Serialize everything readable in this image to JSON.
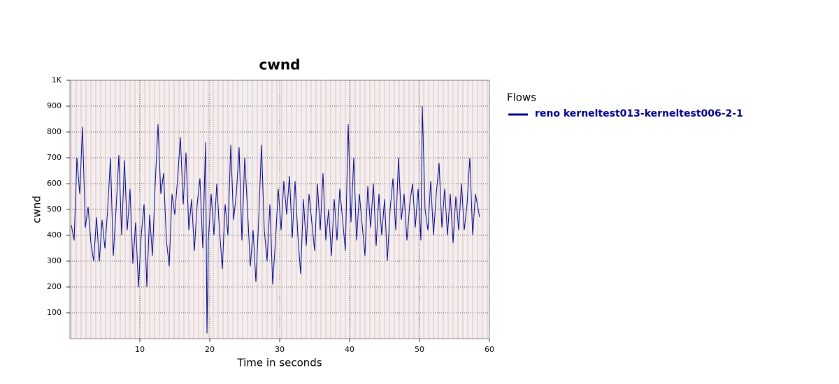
{
  "chart_data": {
    "type": "line",
    "title": "cwnd",
    "x_label": "Time in seconds",
    "y_label": "cwnd",
    "legend_title": "Flows",
    "grid": true,
    "xlim": [
      0,
      60
    ],
    "xticks": [
      10,
      20,
      30,
      40,
      50,
      60
    ],
    "ylim": [
      0,
      1000
    ],
    "yticks": [
      100,
      200,
      300,
      400,
      500,
      600,
      700,
      800,
      900,
      {
        "value": 1000,
        "label": "1K"
      }
    ],
    "x": [
      0.2,
      0.6,
      1.0,
      1.4,
      1.8,
      2.2,
      2.6,
      3.0,
      3.4,
      3.8,
      4.2,
      4.6,
      5.0,
      5.4,
      5.8,
      6.2,
      6.6,
      7.0,
      7.4,
      7.8,
      8.2,
      8.6,
      9.0,
      9.4,
      9.8,
      10.2,
      10.6,
      11.0,
      11.4,
      11.8,
      12.2,
      12.6,
      13.0,
      13.4,
      13.8,
      14.2,
      14.6,
      15.0,
      15.4,
      15.8,
      16.2,
      16.6,
      17.0,
      17.4,
      17.8,
      18.2,
      18.6,
      19.0,
      19.4,
      19.6,
      19.8,
      20.2,
      20.6,
      21.0,
      21.4,
      21.8,
      22.2,
      22.6,
      23.0,
      23.4,
      23.8,
      24.2,
      24.6,
      25.0,
      25.4,
      25.8,
      26.2,
      26.6,
      27.0,
      27.4,
      27.8,
      28.2,
      28.6,
      29.0,
      29.4,
      29.8,
      30.2,
      30.6,
      31.0,
      31.4,
      31.8,
      32.2,
      32.6,
      33.0,
      33.4,
      33.8,
      34.2,
      34.6,
      35.0,
      35.4,
      35.8,
      36.2,
      36.6,
      37.0,
      37.4,
      37.8,
      38.2,
      38.6,
      39.0,
      39.4,
      39.8,
      40.2,
      40.6,
      41.0,
      41.4,
      41.8,
      42.2,
      42.6,
      43.0,
      43.4,
      43.8,
      44.2,
      44.6,
      45.0,
      45.4,
      45.8,
      46.2,
      46.6,
      47.0,
      47.4,
      47.8,
      48.2,
      48.6,
      49.0,
      49.4,
      49.8,
      50.2,
      50.4,
      50.8,
      51.2,
      51.6,
      52.0,
      52.4,
      52.8,
      53.2,
      53.6,
      54.0,
      54.4,
      54.8,
      55.2,
      55.6,
      56.0,
      56.4,
      56.8,
      57.2,
      57.6,
      58.0,
      58.6
    ],
    "series": [
      {
        "name": "reno kerneltest013-kerneltest006-2-1",
        "color": "#00008b",
        "values": [
          440,
          380,
          700,
          560,
          820,
          430,
          510,
          370,
          300,
          470,
          300,
          460,
          350,
          500,
          700,
          320,
          500,
          710,
          400,
          690,
          420,
          580,
          290,
          450,
          200,
          400,
          520,
          200,
          480,
          320,
          600,
          830,
          560,
          640,
          380,
          280,
          560,
          480,
          620,
          780,
          520,
          720,
          420,
          540,
          340,
          520,
          620,
          350,
          760,
          20,
          380,
          560,
          400,
          600,
          420,
          270,
          520,
          400,
          750,
          460,
          560,
          740,
          380,
          700,
          500,
          280,
          420,
          220,
          460,
          750,
          420,
          300,
          520,
          210,
          380,
          580,
          420,
          610,
          480,
          630,
          390,
          610,
          400,
          250,
          540,
          360,
          560,
          450,
          340,
          600,
          420,
          640,
          380,
          500,
          320,
          540,
          380,
          580,
          460,
          340,
          830,
          450,
          700,
          380,
          560,
          440,
          320,
          590,
          430,
          600,
          360,
          560,
          400,
          540,
          300,
          500,
          620,
          420,
          700,
          460,
          560,
          380,
          520,
          600,
          430,
          580,
          380,
          900,
          500,
          420,
          610,
          400,
          560,
          680,
          430,
          580,
          400,
          560,
          370,
          550,
          420,
          600,
          420,
          520,
          700,
          400,
          560,
          470
        ]
      }
    ]
  }
}
